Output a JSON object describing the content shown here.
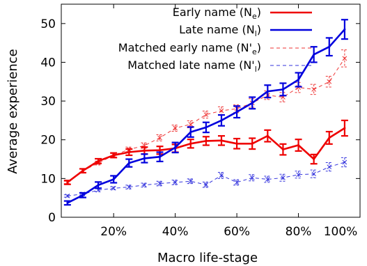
{
  "chart_data": {
    "type": "line",
    "xlabel": "Macro life-stage",
    "ylabel": "Average experience",
    "xlim": [
      3,
      100
    ],
    "ylim": [
      0,
      55
    ],
    "x_ticks": [
      {
        "value": 20,
        "label": "20%"
      },
      {
        "value": 40,
        "label": "40%"
      },
      {
        "value": 60,
        "label": "60%"
      },
      {
        "value": 80,
        "label": "80%"
      },
      {
        "value": 100,
        "label": "100%"
      }
    ],
    "y_ticks": [
      {
        "value": 0,
        "label": "0"
      },
      {
        "value": 10,
        "label": "10"
      },
      {
        "value": 20,
        "label": "20"
      },
      {
        "value": 30,
        "label": "30"
      },
      {
        "value": 40,
        "label": "40"
      },
      {
        "value": 50,
        "label": "50"
      }
    ],
    "legend_position": "top-right",
    "x": [
      5,
      10,
      15,
      20,
      25,
      30,
      35,
      40,
      45,
      50,
      55,
      60,
      65,
      70,
      75,
      80,
      85,
      90,
      95
    ],
    "series": [
      {
        "legend_main": "Early name (N",
        "legend_sub": "e",
        "legend_tail": ")",
        "style": "solid",
        "marker": "errorbar",
        "color": "#ee0000",
        "values": [
          9.0,
          12.0,
          14.5,
          16.0,
          16.8,
          17.2,
          17.3,
          17.8,
          19.0,
          19.7,
          19.8,
          19.0,
          19.0,
          21.0,
          17.5,
          18.6,
          15.0,
          20.5,
          23.0
        ],
        "errors": [
          0.5,
          0.5,
          0.6,
          0.6,
          0.8,
          0.9,
          1.0,
          1.0,
          1.1,
          1.1,
          1.2,
          1.3,
          1.4,
          1.5,
          1.4,
          1.5,
          1.2,
          1.6,
          2.0
        ]
      },
      {
        "legend_main": "Late name (N",
        "legend_sub": "l",
        "legend_tail": ")",
        "style": "solid",
        "marker": "errorbar",
        "color": "#0000dd",
        "values": [
          3.7,
          5.7,
          8.3,
          9.8,
          14.0,
          15.2,
          15.6,
          18.0,
          22.0,
          23.2,
          25.0,
          27.2,
          29.5,
          32.5,
          33.0,
          35.5,
          42.0,
          44.0,
          48.5
        ],
        "errors": [
          0.5,
          0.6,
          0.8,
          0.9,
          1.0,
          1.1,
          1.2,
          1.3,
          1.3,
          1.3,
          1.4,
          1.5,
          1.5,
          1.6,
          1.6,
          1.8,
          2.0,
          2.3,
          2.5
        ]
      },
      {
        "legend_main": "Matched early name (N'",
        "legend_sub": "e",
        "legend_tail": ")",
        "style": "dashed",
        "marker": "x",
        "color": "#ee3333",
        "values": [
          9.0,
          12.0,
          14.0,
          16.0,
          17.5,
          18.5,
          20.5,
          23.0,
          24.0,
          26.5,
          27.5,
          28.0,
          29.5,
          31.5,
          31.0,
          33.5,
          33.0,
          35.0,
          41.0
        ],
        "errors": [
          0.3,
          0.4,
          0.5,
          0.5,
          0.6,
          0.7,
          0.8,
          0.8,
          0.9,
          0.9,
          1.0,
          1.0,
          1.1,
          1.1,
          1.2,
          1.3,
          1.3,
          1.4,
          2.2
        ]
      },
      {
        "legend_main": "Matched late name (N'",
        "legend_sub": "l",
        "legend_tail": ")",
        "style": "dashed",
        "marker": "x",
        "color": "#3333dd",
        "values": [
          5.5,
          6.0,
          7.0,
          7.5,
          7.8,
          8.3,
          8.7,
          9.0,
          9.3,
          8.4,
          10.8,
          9.0,
          10.2,
          9.8,
          10.2,
          11.0,
          11.2,
          13.0,
          14.2
        ],
        "errors": [
          0.3,
          0.3,
          0.4,
          0.4,
          0.5,
          0.5,
          0.6,
          0.6,
          0.6,
          0.7,
          0.8,
          0.7,
          0.8,
          0.8,
          0.9,
          0.9,
          1.0,
          1.1,
          1.2
        ]
      }
    ]
  }
}
